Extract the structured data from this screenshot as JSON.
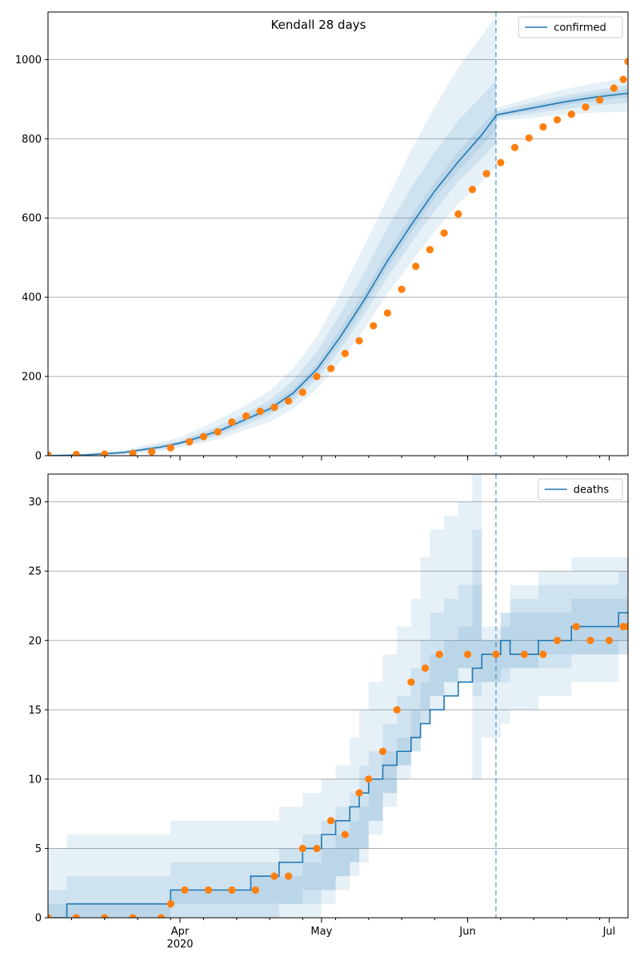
{
  "figure_title": "Kendall 28 days",
  "colors": {
    "model_line": "#1f77b4",
    "observed_points": "#ff7f0e",
    "band": "#1f77b4",
    "grid": "#b0b0b0",
    "forecast_divider": "#1f77b4"
  },
  "x_axis": {
    "tick_labels": [
      "Apr",
      "May",
      "Jun",
      "Jul"
    ],
    "tick_dates": [
      "2020-04-01",
      "2020-05-01",
      "2020-06-01",
      "2020-07-01"
    ],
    "year_label": "2020",
    "range": [
      "2020-03-04",
      "2020-07-05"
    ],
    "forecast_start": "2020-06-07"
  },
  "chart_data": [
    {
      "type": "line",
      "title": "Kendall 28 days",
      "legend": {
        "entries": [
          "confirmed"
        ],
        "placement": "top-right"
      },
      "grid": "horizontal",
      "ylim": [
        0,
        1120
      ],
      "yticks": [
        0,
        200,
        400,
        600,
        800,
        1000
      ],
      "series": [
        {
          "name": "confirmed",
          "kind": "model-line",
          "points": [
            [
              "2020-03-04",
              0
            ],
            [
              "2020-03-12",
              2
            ],
            [
              "2020-03-20",
              8
            ],
            [
              "2020-03-28",
              22
            ],
            [
              "2020-04-01",
              32
            ],
            [
              "2020-04-05",
              46
            ],
            [
              "2020-04-10",
              66
            ],
            [
              "2020-04-15",
              92
            ],
            [
              "2020-04-20",
              118
            ],
            [
              "2020-04-25",
              158
            ],
            [
              "2020-04-30",
              218
            ],
            [
              "2020-05-05",
              300
            ],
            [
              "2020-05-10",
              392
            ],
            [
              "2020-05-15",
              492
            ],
            [
              "2020-05-20",
              582
            ],
            [
              "2020-05-25",
              668
            ],
            [
              "2020-05-30",
              742
            ],
            [
              "2020-06-04",
              810
            ],
            [
              "2020-06-07",
              858
            ],
            [
              "2020-06-07",
              860
            ],
            [
              "2020-06-14",
              876
            ],
            [
              "2020-06-21",
              892
            ],
            [
              "2020-06-28",
              905
            ],
            [
              "2020-07-05",
              915
            ]
          ]
        },
        {
          "kind": "observed",
          "points": [
            [
              "2020-03-04",
              2
            ],
            [
              "2020-03-10",
              3
            ],
            [
              "2020-03-16",
              4
            ],
            [
              "2020-03-22",
              6
            ],
            [
              "2020-03-26",
              10
            ],
            [
              "2020-03-30",
              20
            ],
            [
              "2020-04-03",
              35
            ],
            [
              "2020-04-06",
              48
            ],
            [
              "2020-04-09",
              60
            ],
            [
              "2020-04-12",
              85
            ],
            [
              "2020-04-15",
              100
            ],
            [
              "2020-04-18",
              112
            ],
            [
              "2020-04-21",
              122
            ],
            [
              "2020-04-24",
              138
            ],
            [
              "2020-04-27",
              160
            ],
            [
              "2020-04-30",
              200
            ],
            [
              "2020-05-03",
              220
            ],
            [
              "2020-05-06",
              258
            ],
            [
              "2020-05-09",
              290
            ],
            [
              "2020-05-12",
              328
            ],
            [
              "2020-05-15",
              360
            ],
            [
              "2020-05-18",
              420
            ],
            [
              "2020-05-21",
              478
            ],
            [
              "2020-05-24",
              520
            ],
            [
              "2020-05-27",
              562
            ],
            [
              "2020-05-30",
              610
            ],
            [
              "2020-06-02",
              672
            ],
            [
              "2020-06-05",
              712
            ],
            [
              "2020-06-08",
              740
            ],
            [
              "2020-06-11",
              778
            ],
            [
              "2020-06-14",
              802
            ],
            [
              "2020-06-17",
              830
            ],
            [
              "2020-06-20",
              848
            ],
            [
              "2020-06-23",
              862
            ],
            [
              "2020-06-26",
              880
            ],
            [
              "2020-06-29",
              898
            ],
            [
              "2020-07-02",
              928
            ],
            [
              "2020-07-04",
              950
            ],
            [
              "2020-07-05",
              995
            ]
          ]
        }
      ],
      "bands": [
        {
          "lower": [
            0,
            0,
            3,
            12,
            20,
            30,
            44,
            66,
            85,
            118,
            168,
            238,
            318,
            408,
            488,
            566,
            636,
            692,
            728,
            846,
            852,
            860,
            866,
            868
          ],
          "upper": [
            3,
            6,
            14,
            35,
            46,
            68,
            96,
            128,
            164,
            220,
            300,
            410,
            528,
            650,
            770,
            880,
            980,
            1060,
            1110,
            878,
            902,
            924,
            940,
            955
          ]
        },
        {
          "lower": [
            0,
            0,
            5,
            16,
            26,
            36,
            54,
            78,
            102,
            138,
            192,
            268,
            356,
            450,
            536,
            618,
            692,
            750,
            790,
            852,
            862,
            874,
            884,
            890
          ],
          "upper": [
            2,
            4,
            11,
            29,
            38,
            56,
            80,
            108,
            140,
            190,
            262,
            358,
            462,
            576,
            676,
            766,
            846,
            908,
            948,
            870,
            890,
            908,
            922,
            936
          ]
        },
        {
          "lower": [
            0,
            0,
            6,
            19,
            29,
            40,
            60,
            86,
            110,
            148,
            206,
            284,
            376,
            474,
            564,
            650,
            720,
            782,
            822,
            856,
            869,
            884,
            896,
            904
          ],
          "upper": [
            1,
            3,
            10,
            25,
            35,
            52,
            72,
            99,
            127,
            170,
            232,
            320,
            412,
            512,
            604,
            690,
            768,
            832,
            876,
            864,
            883,
            900,
            914,
            926
          ]
        }
      ]
    },
    {
      "type": "line",
      "legend": {
        "entries": [
          "deaths"
        ],
        "placement": "top-right"
      },
      "grid": "horizontal",
      "ylim": [
        0,
        32
      ],
      "yticks": [
        0,
        5,
        10,
        15,
        20,
        25,
        30
      ],
      "series": [
        {
          "name": "deaths",
          "kind": "model-step",
          "points": [
            [
              "2020-03-04",
              0
            ],
            [
              "2020-03-08",
              1
            ],
            [
              "2020-03-30",
              2
            ],
            [
              "2020-04-16",
              3
            ],
            [
              "2020-04-22",
              4
            ],
            [
              "2020-04-27",
              5
            ],
            [
              "2020-05-01",
              6
            ],
            [
              "2020-05-04",
              7
            ],
            [
              "2020-05-07",
              8
            ],
            [
              "2020-05-09",
              9
            ],
            [
              "2020-05-11",
              10
            ],
            [
              "2020-05-14",
              11
            ],
            [
              "2020-05-17",
              12
            ],
            [
              "2020-05-20",
              13
            ],
            [
              "2020-05-22",
              14
            ],
            [
              "2020-05-24",
              15
            ],
            [
              "2020-05-27",
              16
            ],
            [
              "2020-05-30",
              17
            ],
            [
              "2020-06-02",
              18
            ],
            [
              "2020-06-04",
              19
            ],
            [
              "2020-06-08",
              20
            ],
            [
              "2020-06-10",
              19
            ],
            [
              "2020-06-16",
              20
            ],
            [
              "2020-06-23",
              21
            ],
            [
              "2020-07-03",
              22
            ],
            [
              "2020-07-05",
              22
            ]
          ]
        },
        {
          "kind": "observed",
          "points": [
            [
              "2020-03-04",
              0
            ],
            [
              "2020-03-10",
              0
            ],
            [
              "2020-03-16",
              0
            ],
            [
              "2020-03-22",
              0
            ],
            [
              "2020-03-28",
              0
            ],
            [
              "2020-03-30",
              1
            ],
            [
              "2020-04-02",
              2
            ],
            [
              "2020-04-07",
              2
            ],
            [
              "2020-04-12",
              2
            ],
            [
              "2020-04-17",
              2
            ],
            [
              "2020-04-21",
              3
            ],
            [
              "2020-04-24",
              3
            ],
            [
              "2020-04-27",
              5
            ],
            [
              "2020-04-30",
              5
            ],
            [
              "2020-05-03",
              7
            ],
            [
              "2020-05-06",
              6
            ],
            [
              "2020-05-09",
              9
            ],
            [
              "2020-05-11",
              10
            ],
            [
              "2020-05-14",
              12
            ],
            [
              "2020-05-17",
              15
            ],
            [
              "2020-05-20",
              17
            ],
            [
              "2020-05-23",
              18
            ],
            [
              "2020-05-26",
              19
            ],
            [
              "2020-06-01",
              19
            ],
            [
              "2020-06-07",
              19
            ],
            [
              "2020-06-13",
              19
            ],
            [
              "2020-06-17",
              19
            ],
            [
              "2020-06-20",
              20
            ],
            [
              "2020-06-24",
              21
            ],
            [
              "2020-06-27",
              20
            ],
            [
              "2020-07-01",
              20
            ],
            [
              "2020-07-04",
              21
            ],
            [
              "2020-07-05",
              21
            ]
          ]
        }
      ],
      "bands": [
        {
          "lower": [
            0,
            0,
            0,
            0,
            0,
            0,
            1,
            2,
            3,
            4,
            6,
            8,
            10,
            12,
            14,
            16,
            17,
            18,
            10,
            13,
            14,
            15,
            16,
            17,
            19,
            19
          ],
          "upper": [
            5,
            6,
            7,
            7,
            8,
            9,
            10,
            11,
            13,
            15,
            17,
            19,
            21,
            23,
            26,
            28,
            29,
            30,
            32,
            20,
            22,
            24,
            25,
            26,
            26,
            26
          ]
        },
        {
          "lower": [
            0,
            0,
            0,
            0,
            1,
            1,
            2,
            3,
            4,
            5,
            7,
            9,
            11,
            13,
            15,
            16,
            17,
            18,
            16,
            17,
            17,
            18,
            18,
            19,
            19,
            19
          ],
          "upper": [
            2,
            3,
            4,
            4,
            5,
            6,
            7,
            8,
            9,
            11,
            12,
            14,
            16,
            18,
            20,
            22,
            23,
            24,
            28,
            21,
            22,
            23,
            24,
            24,
            25,
            25
          ]
        },
        {
          "lower": [
            0,
            0,
            1,
            1,
            1,
            2,
            2,
            3,
            4,
            5,
            7,
            9,
            11,
            12,
            14,
            15,
            16,
            17,
            17,
            17,
            18,
            18,
            19,
            19,
            20,
            20
          ],
          "upper": [
            1,
            1,
            2,
            3,
            3,
            4,
            5,
            6,
            7,
            8,
            10,
            12,
            13,
            15,
            17,
            19,
            20,
            21,
            24,
            20,
            21,
            22,
            22,
            23,
            23,
            23
          ]
        }
      ]
    }
  ]
}
